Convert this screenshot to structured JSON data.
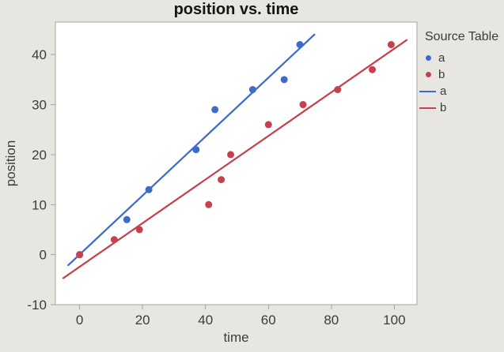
{
  "title": "position vs. time",
  "axes": {
    "x_label": "time",
    "y_label": "position"
  },
  "legend": {
    "title": "Source Table",
    "point_items": [
      {
        "label": "a",
        "color": "#3e6bc9"
      },
      {
        "label": "b",
        "color": "#c5414e"
      }
    ],
    "line_items": [
      {
        "label": "a",
        "color": "#3e6bc9"
      },
      {
        "label": "b",
        "color": "#c5414e"
      }
    ]
  },
  "colors": {
    "background": "#e7e6e1",
    "plot_background": "#ffffff",
    "plot_border": "#a6a6a6",
    "tick_mark": "#a6a6a6",
    "tick_text": "#3c3c3c",
    "series_a": "#3e6bc9",
    "series_b": "#c5414e"
  },
  "chart_data": {
    "type": "scatter",
    "title": "position vs. time",
    "xlabel": "time",
    "ylabel": "position",
    "xlim": [
      -7.7,
      107.2
    ],
    "ylim": [
      -10,
      46.5
    ],
    "x_ticks": [
      0,
      20,
      40,
      60,
      80,
      100
    ],
    "y_ticks": [
      -10,
      0,
      10,
      20,
      30,
      40
    ],
    "grid": false,
    "legend_position": "right",
    "legend_title": "Source Table",
    "marker_radius": 4.5,
    "line_width": 2.25,
    "series": [
      {
        "name": "a",
        "kind": "scatter",
        "color": "#3e6bc9",
        "points": [
          [
            0,
            0
          ],
          [
            15,
            7
          ],
          [
            22,
            13
          ],
          [
            37,
            21
          ],
          [
            43,
            29
          ],
          [
            55,
            33
          ],
          [
            65,
            35
          ],
          [
            70,
            42
          ]
        ]
      },
      {
        "name": "b",
        "kind": "scatter",
        "color": "#c5414e",
        "points": [
          [
            0,
            0
          ],
          [
            11,
            3
          ],
          [
            19,
            5
          ],
          [
            41,
            10
          ],
          [
            45,
            15
          ],
          [
            48,
            20
          ],
          [
            60,
            26
          ],
          [
            71,
            30
          ],
          [
            82,
            33
          ],
          [
            93,
            37
          ],
          [
            99,
            42
          ]
        ]
      },
      {
        "name": "a",
        "kind": "fit-line",
        "color": "#3e6bc9",
        "endpoints": [
          [
            -3.6,
            -2.1
          ],
          [
            74.6,
            44.0
          ]
        ]
      },
      {
        "name": "b",
        "kind": "fit-line",
        "color": "#c5414e",
        "endpoints": [
          [
            -5.2,
            -4.7
          ],
          [
            103.9,
            42.9
          ]
        ]
      }
    ]
  }
}
